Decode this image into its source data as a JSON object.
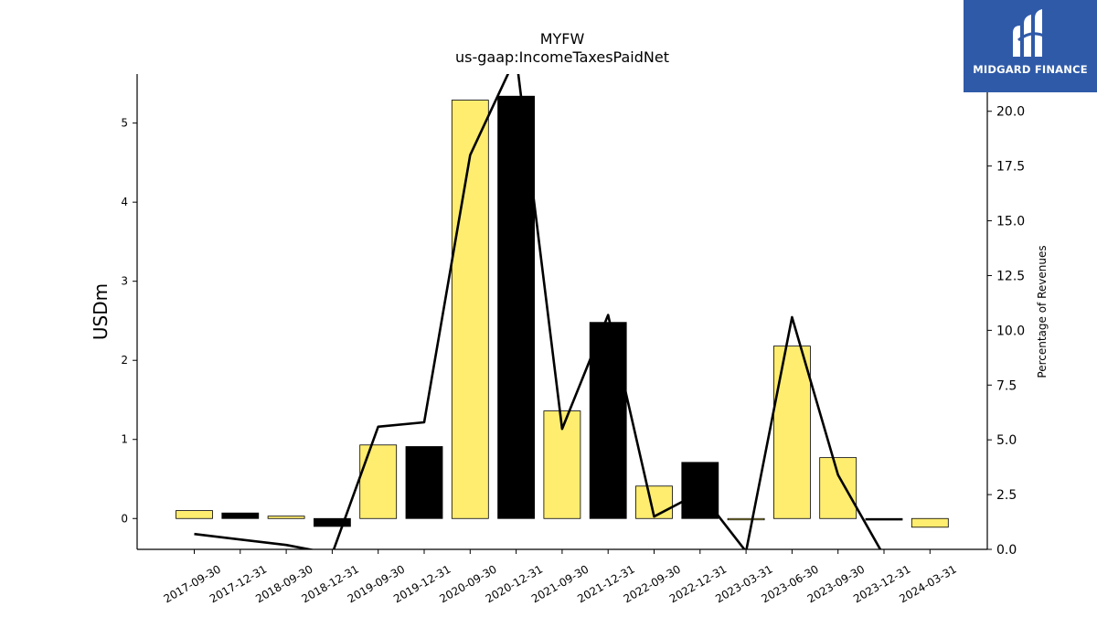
{
  "chart_data": {
    "type": "bar",
    "title": "MYFW",
    "subtitle": "us-gaap:IncomeTaxesPaidNet",
    "ylabel": "USDm",
    "y2label": "Percentage of Revenues",
    "categories": [
      "2017-09-30",
      "2017-12-31",
      "2018-09-30",
      "2018-12-31",
      "2019-09-30",
      "2019-12-31",
      "2020-09-30",
      "2020-12-31",
      "2021-09-30",
      "2021-12-31",
      "2022-09-30",
      "2022-12-31",
      "2023-03-31",
      "2023-06-30",
      "2023-09-30",
      "2023-12-31",
      "2024-03-31"
    ],
    "bar_colors": [
      "#ffed6f",
      "#000000",
      "#ffed6f",
      "#000000",
      "#ffed6f",
      "#000000",
      "#ffed6f",
      "#000000",
      "#ffed6f",
      "#000000",
      "#ffed6f",
      "#000000",
      "#ffed6f",
      "#ffed6f",
      "#ffed6f",
      "#000000",
      "#ffed6f"
    ],
    "series": [
      {
        "name": "",
        "axis": "left",
        "type": "bar",
        "values": [
          0.1,
          0.07,
          0.03,
          -0.1,
          0.93,
          0.91,
          5.29,
          5.34,
          1.36,
          2.48,
          0.41,
          0.71,
          -0.01,
          2.18,
          0.77,
          -0.02,
          -0.11
        ]
      },
      {
        "name": "",
        "axis": "right",
        "type": "line",
        "values": [
          0.7,
          null,
          0.2,
          -0.2,
          5.6,
          5.8,
          18.0,
          22.5,
          5.5,
          10.7,
          1.5,
          2.6,
          -0.1,
          10.6,
          3.4,
          -0.3,
          null
        ]
      }
    ],
    "ylim": [
      -0.39,
      5.62
    ],
    "y2lim": [
      0.0,
      21.7
    ],
    "yticks": [
      0,
      1,
      2,
      3,
      4,
      5
    ],
    "y2ticks": [
      "0.0",
      "2.5",
      "5.0",
      "7.5",
      "10.0",
      "12.5",
      "15.0",
      "17.5",
      "20.0"
    ],
    "grid": false,
    "legend": "none"
  },
  "logo": {
    "text": "MIDGARD FINANCE",
    "icon": "midgard-logo-icon"
  }
}
